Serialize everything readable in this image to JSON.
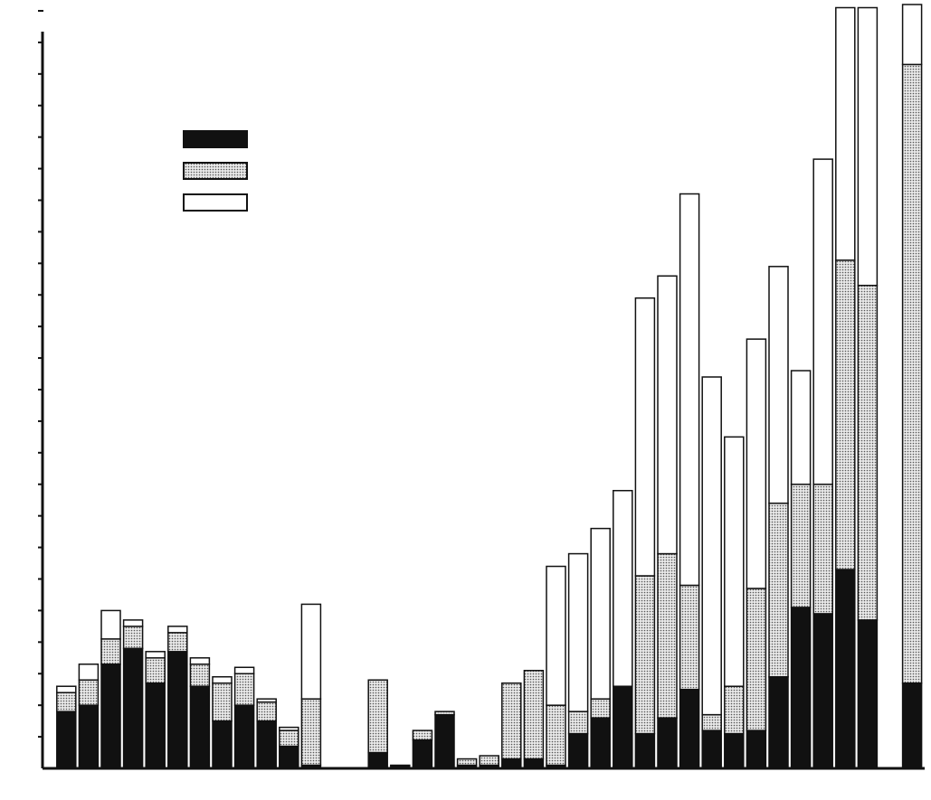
{
  "chart_data": {
    "type": "stacked_bar",
    "categories": [
      null,
      null,
      null,
      null,
      null,
      null,
      null,
      null,
      null,
      null,
      null,
      null,
      null,
      null,
      null,
      null,
      null,
      null,
      null,
      null,
      null,
      null,
      null,
      null,
      null,
      null,
      null,
      null,
      null,
      null,
      null,
      null,
      null,
      null,
      null,
      null,
      null,
      null,
      null
    ],
    "series": [
      {
        "color": "#111111",
        "pattern": "solid",
        "values": [
          1.8,
          2.0,
          3.3,
          3.8,
          2.7,
          3.7,
          2.6,
          1.5,
          2.0,
          1.5,
          0.7,
          0.1,
          null,
          null,
          0.5,
          0.1,
          0.9,
          1.7,
          0.1,
          0.1,
          0.3,
          0.3,
          0.1,
          1.1,
          1.6,
          2.6,
          1.1,
          1.6,
          2.5,
          1.2,
          1.1,
          1.2,
          2.9,
          5.1,
          4.9,
          6.3,
          4.7,
          null,
          2.7
        ]
      },
      {
        "color": "#bdbdbd",
        "pattern": "dotted",
        "values": [
          0.6,
          0.8,
          0.8,
          0.7,
          0.8,
          0.6,
          0.7,
          1.2,
          1.0,
          0.6,
          0.5,
          2.1,
          null,
          null,
          2.3,
          0,
          0.3,
          0.1,
          0.2,
          0.3,
          2.4,
          2.8,
          1.9,
          0.7,
          0.6,
          0,
          5.0,
          5.2,
          3.3,
          0.5,
          1.5,
          4.5,
          5.5,
          3.9,
          4.1,
          9.8,
          10.6,
          null,
          19.6
        ]
      },
      {
        "color": "#ffffff",
        "pattern": "solid",
        "values": [
          0.2,
          0.5,
          0.9,
          0.2,
          0.2,
          0.2,
          0.2,
          0.2,
          0.2,
          0.1,
          0.1,
          3.0,
          null,
          null,
          0,
          0,
          0,
          0,
          0,
          0,
          0,
          0,
          4.4,
          5.0,
          5.4,
          6.2,
          8.8,
          8.8,
          12.4,
          10.7,
          7.9,
          7.9,
          7.5,
          3.6,
          10.3,
          8.0,
          8.8,
          null,
          1.9
        ]
      }
    ],
    "ylim": [
      0,
      24.2
    ],
    "yticks": [
      1,
      2,
      3,
      4,
      5,
      6,
      7,
      8,
      9,
      10,
      11,
      12,
      13,
      14,
      15,
      16,
      17,
      18,
      19,
      20,
      21,
      22,
      23,
      24
    ]
  }
}
